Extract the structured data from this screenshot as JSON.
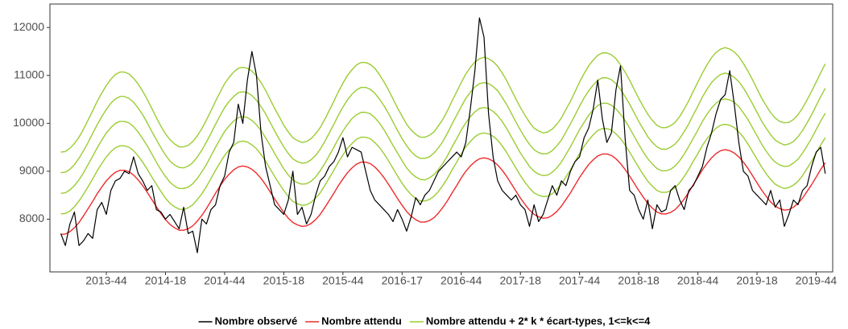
{
  "chart_data": {
    "type": "line",
    "categories": [
      null,
      null,
      null,
      null,
      null,
      null,
      null,
      null,
      null,
      null,
      "2013-44",
      null,
      null,
      null,
      null,
      null,
      null,
      null,
      null,
      null,
      null,
      null,
      null,
      "2014-18",
      null,
      null,
      null,
      null,
      null,
      null,
      null,
      null,
      null,
      null,
      null,
      null,
      "2014-44",
      null,
      null,
      null,
      null,
      null,
      null,
      null,
      null,
      null,
      null,
      null,
      null,
      "2015-18",
      null,
      null,
      null,
      null,
      null,
      null,
      null,
      null,
      null,
      null,
      null,
      null,
      "2015-44",
      null,
      null,
      null,
      null,
      null,
      null,
      null,
      null,
      null,
      null,
      null,
      null,
      "2016-17",
      null,
      null,
      null,
      null,
      null,
      null,
      null,
      null,
      null,
      null,
      null,
      null,
      "2016-44",
      null,
      null,
      null,
      null,
      null,
      null,
      null,
      null,
      null,
      null,
      null,
      null,
      "2017-18",
      null,
      null,
      null,
      null,
      null,
      null,
      null,
      null,
      null,
      null,
      null,
      null,
      "2017-44",
      null,
      null,
      null,
      null,
      null,
      null,
      null,
      null,
      null,
      null,
      null,
      null,
      "2018-18",
      null,
      null,
      null,
      null,
      null,
      null,
      null,
      null,
      null,
      null,
      null,
      null,
      "2018-44",
      null,
      null,
      null,
      null,
      null,
      null,
      null,
      null,
      null,
      null,
      null,
      null,
      "2019-18",
      null,
      null,
      null,
      null,
      null,
      null,
      null,
      null,
      null,
      null,
      null,
      null,
      "2019-44",
      null,
      null
    ],
    "series": [
      {
        "name": "Nombre observé",
        "color": "#000000",
        "values": [
          7700,
          7450,
          7900,
          8150,
          7450,
          7550,
          7700,
          7600,
          8200,
          8350,
          8100,
          8600,
          8800,
          8850,
          9000,
          8950,
          9300,
          8950,
          8800,
          8600,
          8700,
          8200,
          8150,
          8000,
          8100,
          7950,
          7800,
          8250,
          7700,
          7750,
          7300,
          8000,
          7900,
          8200,
          8300,
          8700,
          8900,
          9400,
          9600,
          10400,
          10000,
          10900,
          11500,
          11000,
          9800,
          9100,
          8700,
          8300,
          8200,
          8100,
          8400,
          9000,
          8100,
          8250,
          7900,
          8100,
          8500,
          8800,
          8900,
          9100,
          9200,
          9400,
          9700,
          9300,
          9500,
          9450,
          9400,
          9000,
          8600,
          8400,
          8300,
          8200,
          8100,
          7950,
          8200,
          8000,
          7750,
          8050,
          8450,
          8300,
          8500,
          8600,
          8800,
          9000,
          9100,
          9200,
          9300,
          9400,
          9300,
          9600,
          10300,
          11100,
          12200,
          11800,
          10200,
          9300,
          8800,
          8600,
          8500,
          8400,
          8500,
          8300,
          8200,
          7850,
          8300,
          7950,
          8100,
          8400,
          8700,
          8500,
          8800,
          8700,
          9000,
          9200,
          9300,
          9700,
          9900,
          10300,
          10900,
          10100,
          9600,
          9800,
          10700,
          11200,
          9700,
          8600,
          8500,
          8200,
          8000,
          8400,
          7800,
          8300,
          8150,
          8200,
          8600,
          8700,
          8400,
          8200,
          8600,
          8700,
          8900,
          9100,
          9500,
          9800,
          10200,
          10500,
          10600,
          11100,
          10400,
          9600,
          9000,
          8900,
          8600,
          8500,
          8400,
          8300,
          8600,
          8250,
          8400,
          7850,
          8100,
          8400,
          8300,
          8600,
          8700,
          9100,
          9400,
          9500,
          8950
        ]
      },
      {
        "name": "Nombre attendu",
        "color": "#ee2a2a",
        "values": [
          7680,
          7690,
          7740,
          7820,
          7930,
          8070,
          8220,
          8370,
          8530,
          8670,
          8800,
          8900,
          8980,
          9020,
          9020,
          8990,
          8920,
          8820,
          8700,
          8560,
          8410,
          8260,
          8120,
          7990,
          7890,
          7820,
          7770,
          7770,
          7800,
          7860,
          7960,
          8080,
          8220,
          8380,
          8540,
          8690,
          8830,
          8940,
          9030,
          9090,
          9110,
          9090,
          9040,
          8960,
          8850,
          8720,
          8570,
          8420,
          8280,
          8140,
          8020,
          7930,
          7880,
          7850,
          7860,
          7910,
          7990,
          8100,
          8240,
          8390,
          8540,
          8700,
          8840,
          8970,
          9070,
          9150,
          9190,
          9190,
          9160,
          9090,
          8990,
          8870,
          8730,
          8580,
          8430,
          8290,
          8160,
          8060,
          7990,
          7940,
          7940,
          7970,
          8030,
          8130,
          8250,
          8390,
          8550,
          8700,
          8860,
          9000,
          9110,
          9200,
          9260,
          9280,
          9260,
          9210,
          9130,
          9020,
          8890,
          8740,
          8590,
          8440,
          8310,
          8190,
          8100,
          8050,
          8020,
          8030,
          8080,
          8160,
          8270,
          8410,
          8550,
          8710,
          8870,
          9010,
          9140,
          9240,
          9320,
          9360,
          9360,
          9330,
          9260,
          9160,
          9040,
          8900,
          8750,
          8600,
          8460,
          8330,
          8230,
          8150,
          8110,
          8110,
          8140,
          8200,
          8300,
          8420,
          8560,
          8720,
          8870,
          9030,
          9160,
          9280,
          9370,
          9430,
          9450,
          9430,
          9380,
          9300,
          9190,
          9060,
          8910,
          8760,
          8610,
          8480,
          8360,
          8270,
          8220,
          8190,
          8200,
          8250,
          8330,
          8440,
          8580,
          8720,
          8880,
          9040,
          9180
        ]
      },
      {
        "name": "Nombre attendu + 2* k * écart-types, 1<=k<=4",
        "color": "#9acd32",
        "values": [
          8110,
          8120,
          8170,
          8260,
          8380,
          8520,
          8680,
          8840,
          9010,
          9160,
          9300,
          9410,
          9490,
          9530,
          9530,
          9500,
          9430,
          9320,
          9190,
          9040,
          8880,
          8730,
          8580,
          8440,
          8330,
          8260,
          8210,
          8200,
          8240,
          8300,
          8410,
          8530,
          8680,
          8850,
          9020,
          9180,
          9330,
          9450,
          9540,
          9610,
          9630,
          9610,
          9550,
          9470,
          9350,
          9210,
          9050,
          8890,
          8740,
          8600,
          8470,
          8370,
          8320,
          8290,
          8300,
          8350,
          8440,
          8550,
          8700,
          8860,
          9020,
          9190,
          9340,
          9480,
          9580,
          9670,
          9710,
          9710,
          9680,
          9600,
          9500,
          9370,
          9220,
          9060,
          8900,
          8750,
          8620,
          8510,
          8430,
          8380,
          8380,
          8410,
          8480,
          8580,
          8710,
          8860,
          9030,
          9190,
          9360,
          9510,
          9620,
          9720,
          9780,
          9800,
          9780,
          9730,
          9650,
          9530,
          9390,
          9230,
          9070,
          8910,
          8770,
          8650,
          8550,
          8500,
          8470,
          8480,
          8530,
          8620,
          8730,
          8880,
          9030,
          9200,
          9370,
          9520,
          9650,
          9760,
          9850,
          9890,
          9890,
          9860,
          9780,
          9680,
          9550,
          9400,
          9240,
          9080,
          8930,
          8790,
          8690,
          8600,
          8560,
          8560,
          8590,
          8660,
          8760,
          8890,
          9040,
          9210,
          9370,
          9540,
          9680,
          9800,
          9900,
          9960,
          9980,
          9960,
          9910,
          9820,
          9710,
          9570,
          9410,
          9250,
          9090,
          8950,
          8830,
          8730,
          8680,
          8640,
          8660,
          8710,
          8790,
          8910,
          9060,
          9210,
          9380,
          9550,
          9700
        ]
      },
      {
        "color": "#9acd32",
        "values": [
          8540,
          8550,
          8610,
          8700,
          8820,
          8970,
          9140,
          9310,
          9490,
          9650,
          9800,
          9910,
          10000,
          10040,
          10040,
          10010,
          9930,
          9820,
          9680,
          9530,
          9360,
          9190,
          9030,
          8890,
          8770,
          8690,
          8640,
          8640,
          8670,
          8740,
          8850,
          8990,
          9140,
          9320,
          9500,
          9670,
          9830,
          9950,
          10050,
          10120,
          10140,
          10120,
          10060,
          9970,
          9850,
          9700,
          9540,
          9370,
          9210,
          9050,
          8920,
          8820,
          8760,
          8730,
          8740,
          8790,
          8880,
          9010,
          9160,
          9330,
          9500,
          9680,
          9840,
          9980,
          10100,
          10180,
          10230,
          10230,
          10200,
          10120,
          10010,
          9870,
          9710,
          9540,
          9380,
          9220,
          9070,
          8960,
          8880,
          8830,
          8820,
          8860,
          8930,
          9040,
          9170,
          9330,
          9510,
          9680,
          9860,
          10010,
          10140,
          10240,
          10310,
          10330,
          10310,
          10250,
          10160,
          10040,
          9890,
          9720,
          9550,
          9380,
          9240,
          9100,
          9000,
          8940,
          8910,
          8920,
          8980,
          9070,
          9190,
          9350,
          9510,
          9690,
          9870,
          10020,
          10170,
          10280,
          10370,
          10420,
          10420,
          10380,
          10300,
          10190,
          10060,
          9900,
          9730,
          9560,
          9400,
          9260,
          9150,
          9060,
          9010,
          9010,
          9040,
          9110,
          9220,
          9360,
          9520,
          9690,
          9860,
          10040,
          10190,
          10320,
          10420,
          10490,
          10510,
          10490,
          10440,
          10350,
          10220,
          10080,
          9910,
          9740,
          9570,
          9420,
          9290,
          9190,
          9130,
          9100,
          9110,
          9170,
          9250,
          9380,
          9530,
          9690,
          9870,
          10050,
          10210
        ]
      },
      {
        "color": "#9acd32",
        "values": [
          8970,
          8980,
          9040,
          9140,
          9270,
          9430,
          9600,
          9790,
          9970,
          10140,
          10290,
          10420,
          10510,
          10560,
          10560,
          10520,
          10440,
          10320,
          10180,
          10010,
          9830,
          9660,
          9490,
          9340,
          9210,
          9130,
          9080,
          9070,
          9110,
          9180,
          9300,
          9440,
          9610,
          9790,
          9980,
          10160,
          10330,
          10460,
          10560,
          10640,
          10660,
          10640,
          10580,
          10480,
          10350,
          10200,
          10020,
          9840,
          9670,
          9510,
          9370,
          9260,
          9200,
          9170,
          9180,
          9240,
          9330,
          9460,
          9620,
          9800,
          9980,
          10170,
          10340,
          10490,
          10610,
          10700,
          10750,
          10750,
          10710,
          10630,
          10510,
          10370,
          10210,
          10030,
          9850,
          9680,
          9530,
          9410,
          9320,
          9270,
          9270,
          9300,
          9380,
          9490,
          9630,
          9800,
          9990,
          10170,
          10350,
          10520,
          10650,
          10760,
          10830,
          10850,
          10830,
          10770,
          10680,
          10540,
          10390,
          10210,
          10030,
          9860,
          9700,
          9560,
          9450,
          9390,
          9360,
          9370,
          9430,
          9530,
          9650,
          9820,
          9990,
          10170,
          10360,
          10530,
          10680,
          10800,
          10900,
          10950,
          10950,
          10910,
          10830,
          10710,
          10560,
          10400,
          10220,
          10040,
          9880,
          9720,
          9600,
          9510,
          9460,
          9460,
          9500,
          9570,
          9680,
          9830,
          9990,
          10180,
          10360,
          10550,
          10710,
          10850,
          10950,
          11020,
          11050,
          11020,
          10960,
          10870,
          10740,
          10580,
          10410,
          10230,
          10050,
          9900,
          9760,
          9650,
          9590,
          9550,
          9570,
          9620,
          9720,
          9850,
          10010,
          10180,
          10370,
          10560,
          10730
        ]
      },
      {
        "color": "#9acd32",
        "values": [
          9400,
          9410,
          9480,
          9580,
          9710,
          9880,
          10070,
          10260,
          10460,
          10630,
          10790,
          10920,
          11020,
          11070,
          11070,
          11030,
          10940,
          10820,
          10670,
          10500,
          10310,
          10120,
          9940,
          9780,
          9660,
          9570,
          9510,
          9510,
          9540,
          9620,
          9740,
          9890,
          10070,
          10260,
          10460,
          10650,
          10830,
          10960,
          11070,
          11150,
          11170,
          11150,
          11090,
          10990,
          10850,
          10690,
          10500,
          10310,
          10140,
          9960,
          9820,
          9700,
          9640,
          9600,
          9620,
          9680,
          9780,
          9910,
          10080,
          10270,
          10460,
          10660,
          10840,
          11000,
          11120,
          11220,
          11270,
          11270,
          11230,
          11150,
          11020,
          10870,
          10700,
          10510,
          10320,
          10150,
          9980,
          9860,
          9770,
          9710,
          9710,
          9750,
          9820,
          9950,
          10090,
          10270,
          10470,
          10660,
          10850,
          11030,
          11170,
          11280,
          11350,
          11380,
          11350,
          11290,
          11190,
          11050,
          10890,
          10700,
          10510,
          10330,
          10170,
          10020,
          9900,
          9840,
          9800,
          9820,
          9880,
          9980,
          10110,
          10290,
          10460,
          10660,
          10860,
          11040,
          11200,
          11320,
          11420,
          11470,
          11470,
          11430,
          11350,
          11220,
          11070,
          10900,
          10710,
          10520,
          10350,
          10190,
          10060,
          9960,
          9910,
          9910,
          9950,
          10020,
          10140,
          10300,
          10470,
          10670,
          10860,
          11050,
          11220,
          11370,
          11480,
          11550,
          11580,
          11550,
          11490,
          11390,
          11250,
          11090,
          10910,
          10720,
          10530,
          10370,
          10220,
          10110,
          10040,
          10010,
          10020,
          10080,
          10180,
          10320,
          10490,
          10670,
          10860,
          11060,
          11240
        ]
      }
    ],
    "ylim": [
      6900,
      12490
    ],
    "yticks": [
      8000,
      9000,
      10000,
      11000,
      12000
    ],
    "grid": false,
    "legend": "bottom"
  }
}
